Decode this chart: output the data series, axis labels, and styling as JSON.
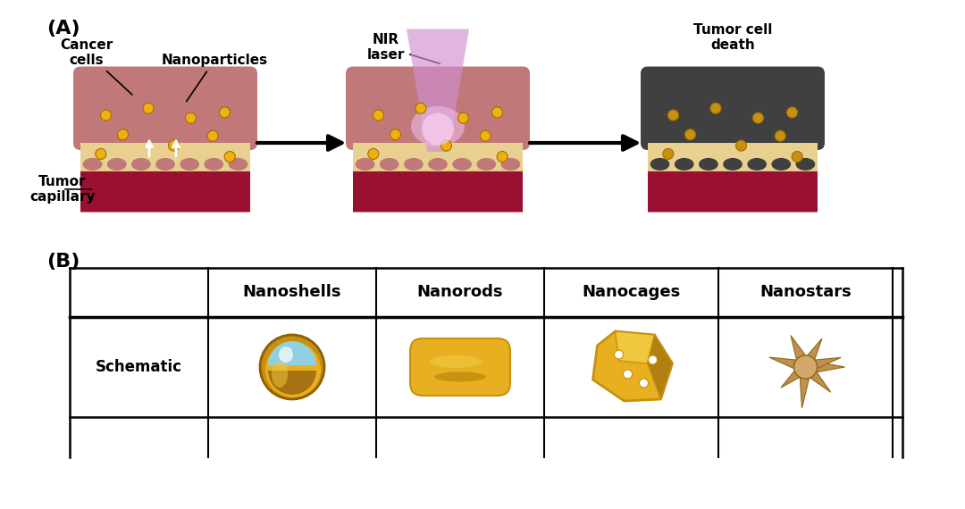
{
  "bg_color": "#ffffff",
  "label_A": "(A)",
  "label_B": "(B)",
  "table_headers": [
    "",
    "Nanoshells",
    "Nanorods",
    "Nanocages",
    "Nanostars"
  ],
  "annotation_cancer_cells": "Cancer\ncells",
  "annotation_nanoparticles": "Nanoparticles",
  "annotation_tumor_capillary": "Tumor\ncapillary",
  "annotation_nir_laser": "NIR\nlaser",
  "annotation_tumor_cell_death": "Tumor cell\ndeath",
  "color_cancer_pink": "#c07878",
  "color_cancer_dark": "#404040",
  "color_capillary_red": "#9a1030",
  "color_cream": "#e8d090",
  "color_gold": "#d4a020",
  "color_gold2": "#c89010",
  "color_gold_light": "#f0c840",
  "color_gold_mid": "#e8b020",
  "color_gold_outer": "#c89010",
  "color_blue_inner": "#90d0e0",
  "color_star_gold": "#c09050",
  "color_star_dark": "#8B6914",
  "color_star_light": "#d4a86a",
  "font_size_label": 16,
  "font_size_header": 13,
  "font_size_annotation": 10,
  "font_size_schematic": 12
}
